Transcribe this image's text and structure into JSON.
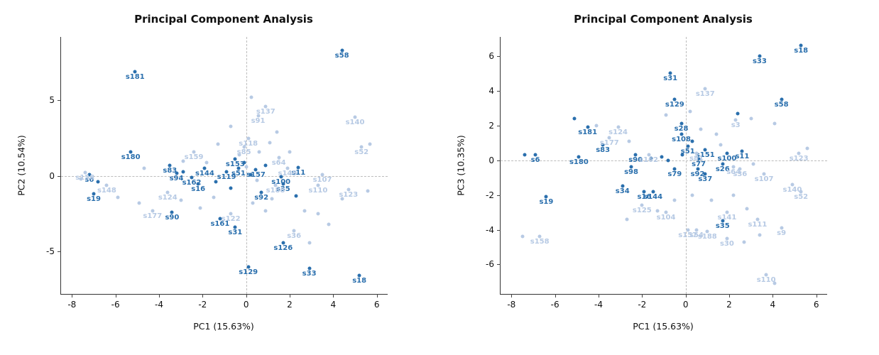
{
  "page": {
    "background": "#ffffff"
  },
  "chart_data": [
    {
      "type": "scatter",
      "title": "Principal Component Analysis",
      "xlabel": "PC1 (15.63%)",
      "ylabel": "PC2 (10.54%)",
      "xlim": [
        -8.5,
        6.5
      ],
      "ylim": [
        -7.8,
        9.2
      ],
      "xticks": [
        -8,
        -6,
        -4,
        -2,
        0,
        2,
        4,
        6
      ],
      "yticks": [
        -5,
        0,
        5
      ],
      "zero_lines": true,
      "grid": "dashed-zero-lines-only",
      "legend": "none",
      "series": [
        {
          "name": "group-dark-blue",
          "color": "#2a6fad",
          "points": [
            {
              "x": 4.4,
              "y": 8.3,
              "l": "s58"
            },
            {
              "x": -5.1,
              "y": 6.9,
              "l": "s181"
            },
            {
              "x": -5.3,
              "y": 1.6,
              "l": "s180"
            },
            {
              "x": -3.5,
              "y": 0.7,
              "l": "s83"
            },
            {
              "x": -3.2,
              "y": 0.2,
              "l": "s94"
            },
            {
              "x": -7.2,
              "y": 0.1,
              "l": "s6"
            },
            {
              "x": -7.0,
              "y": -1.2,
              "l": "s19"
            },
            {
              "x": -3.4,
              "y": -2.4,
              "l": "s90"
            },
            {
              "x": -1.9,
              "y": 0.5,
              "l": "s144"
            },
            {
              "x": -2.5,
              "y": -0.1,
              "l": "s162"
            },
            {
              "x": -2.2,
              "y": -0.5,
              "l": "s16"
            },
            {
              "x": -0.5,
              "y": 1.1,
              "l": "s153"
            },
            {
              "x": -0.9,
              "y": 0.3,
              "l": "s119"
            },
            {
              "x": -0.35,
              "y": 0.5,
              "l": "s51"
            },
            {
              "x": 0.45,
              "y": 0.4,
              "l": "s157"
            },
            {
              "x": 0.7,
              "y": -1.1,
              "l": "s92"
            },
            {
              "x": 1.7,
              "y": -0.5,
              "l": "s35"
            },
            {
              "x": 1.6,
              "y": -0.05,
              "l": "s100"
            },
            {
              "x": 2.4,
              "y": 0.55,
              "l": "s11"
            },
            {
              "x": -1.2,
              "y": -2.8,
              "l": "s161"
            },
            {
              "x": -0.5,
              "y": -3.4,
              "l": "s31"
            },
            {
              "x": 0.1,
              "y": -6.0,
              "l": "s129"
            },
            {
              "x": 1.7,
              "y": -4.4,
              "l": "s126"
            },
            {
              "x": 2.9,
              "y": -6.1,
              "l": "s33"
            },
            {
              "x": 5.2,
              "y": -6.6,
              "l": "s18"
            },
            {
              "x": -6.8,
              "y": -0.4
            },
            {
              "x": -2.9,
              "y": 0.3
            },
            {
              "x": -0.1,
              "y": 0.9
            },
            {
              "x": -0.7,
              "y": -0.8
            },
            {
              "x": 0.2,
              "y": 0.1
            },
            {
              "x": -1.4,
              "y": -0.4
            },
            {
              "x": 0.9,
              "y": 0.7
            },
            {
              "x": 2.3,
              "y": -1.3
            }
          ]
        },
        {
          "name": "group-light-blue",
          "color": "#b7cae4",
          "points": [
            {
              "x": 0.9,
              "y": 4.6,
              "l": "s137"
            },
            {
              "x": 0.55,
              "y": 4.0,
              "l": "s91"
            },
            {
              "x": 5.0,
              "y": 3.9,
              "l": "s140"
            },
            {
              "x": 5.3,
              "y": 1.9,
              "l": "s52"
            },
            {
              "x": 0.1,
              "y": 2.5,
              "l": "s118"
            },
            {
              "x": -0.1,
              "y": 1.9,
              "l": "s85"
            },
            {
              "x": -2.4,
              "y": 1.6,
              "l": "s159"
            },
            {
              "x": 1.5,
              "y": 1.2,
              "l": "s64"
            },
            {
              "x": 1.9,
              "y": 0.5,
              "l": "s149"
            },
            {
              "x": -6.4,
              "y": -0.6,
              "l": "s148"
            },
            {
              "x": -7.4,
              "y": 0.25,
              "l": "s158"
            },
            {
              "x": -3.6,
              "y": -1.1,
              "l": "s124"
            },
            {
              "x": -4.3,
              "y": -2.3,
              "l": "s177"
            },
            {
              "x": -0.7,
              "y": -2.5,
              "l": "s122"
            },
            {
              "x": 2.2,
              "y": -3.6,
              "l": "s36"
            },
            {
              "x": 1.35,
              "y": -0.6,
              "l": "s188"
            },
            {
              "x": 3.5,
              "y": 0.1,
              "l": "s107"
            },
            {
              "x": 3.3,
              "y": -0.6,
              "l": "s110"
            },
            {
              "x": 4.7,
              "y": -0.9,
              "l": "s123"
            },
            {
              "x": 0.25,
              "y": 5.2
            },
            {
              "x": -0.7,
              "y": 3.3
            },
            {
              "x": 1.4,
              "y": 2.9
            },
            {
              "x": 5.7,
              "y": 2.1
            },
            {
              "x": -1.3,
              "y": 2.1
            },
            {
              "x": -2.9,
              "y": 1.0
            },
            {
              "x": -4.7,
              "y": 0.5
            },
            {
              "x": -7.6,
              "y": -0.2
            },
            {
              "x": -5.9,
              "y": -1.4
            },
            {
              "x": -4.9,
              "y": -1.8
            },
            {
              "x": -3.0,
              "y": -1.6
            },
            {
              "x": -2.1,
              "y": -2.1
            },
            {
              "x": -1.5,
              "y": -1.4
            },
            {
              "x": 0.3,
              "y": -1.8
            },
            {
              "x": 0.9,
              "y": -2.3
            },
            {
              "x": 1.2,
              "y": -1.5
            },
            {
              "x": 2.7,
              "y": -2.3
            },
            {
              "x": 3.3,
              "y": -2.5
            },
            {
              "x": 2.9,
              "y": -4.4
            },
            {
              "x": 3.8,
              "y": -3.2
            },
            {
              "x": 4.4,
              "y": -1.5
            },
            {
              "x": 5.6,
              "y": -1.0
            },
            {
              "x": 0.6,
              "y": 1.6
            },
            {
              "x": 1.1,
              "y": 2.2
            },
            {
              "x": 0.0,
              "y": 0.6
            },
            {
              "x": 0.5,
              "y": -0.3
            },
            {
              "x": -0.3,
              "y": 1.4
            },
            {
              "x": -1.8,
              "y": 0.9
            },
            {
              "x": 2.0,
              "y": 1.6
            }
          ]
        }
      ]
    },
    {
      "type": "scatter",
      "title": "Principal Component Analysis",
      "xlabel": "PC1 (15.63%)",
      "ylabel": "PC3 (10.35%)",
      "xlim": [
        -8.5,
        6.5
      ],
      "ylim": [
        -7.7,
        7.1
      ],
      "xticks": [
        -8,
        -6,
        -4,
        -2,
        0,
        2,
        4,
        6
      ],
      "yticks": [
        -6,
        -4,
        -2,
        0,
        2,
        4,
        6
      ],
      "zero_lines": true,
      "grid": "dashed-zero-lines-only",
      "legend": "none",
      "series": [
        {
          "name": "group-dark-blue",
          "color": "#2a6fad",
          "points": [
            {
              "x": 5.3,
              "y": 6.6,
              "l": "s18"
            },
            {
              "x": 3.4,
              "y": 6.0,
              "l": "s33"
            },
            {
              "x": -0.7,
              "y": 5.0,
              "l": "s31"
            },
            {
              "x": -0.5,
              "y": 3.5,
              "l": "s129"
            },
            {
              "x": 4.4,
              "y": 3.5,
              "l": "s58"
            },
            {
              "x": -4.5,
              "y": 1.9,
              "l": "s181"
            },
            {
              "x": -3.8,
              "y": 0.9,
              "l": "s83"
            },
            {
              "x": -0.2,
              "y": 2.1,
              "l": "s28"
            },
            {
              "x": -4.9,
              "y": 0.2,
              "l": "s180"
            },
            {
              "x": -6.9,
              "y": 0.3,
              "l": "s6"
            },
            {
              "x": -6.4,
              "y": -2.1,
              "l": "s19"
            },
            {
              "x": -2.3,
              "y": 0.3,
              "l": "s90"
            },
            {
              "x": -2.5,
              "y": -0.4,
              "l": "s98"
            },
            {
              "x": -2.9,
              "y": -1.5,
              "l": "s34"
            },
            {
              "x": -1.9,
              "y": -1.8,
              "l": "s16"
            },
            {
              "x": -1.5,
              "y": -1.8,
              "l": "s144"
            },
            {
              "x": 0.9,
              "y": 0.6,
              "l": "s151"
            },
            {
              "x": 1.9,
              "y": 0.4,
              "l": "s100"
            },
            {
              "x": 2.6,
              "y": 0.5,
              "l": "s11"
            },
            {
              "x": 0.6,
              "y": 0.05,
              "l": "s77"
            },
            {
              "x": 1.7,
              "y": -0.2,
              "l": "s26"
            },
            {
              "x": -0.5,
              "y": -0.5,
              "l": "s79"
            },
            {
              "x": 0.9,
              "y": -0.8,
              "l": "s37"
            },
            {
              "x": 0.55,
              "y": -0.5,
              "l": "s92"
            },
            {
              "x": 1.7,
              "y": -3.5,
              "l": "s35"
            },
            {
              "x": -0.2,
              "y": 1.5,
              "l": "s108"
            },
            {
              "x": 0.1,
              "y": 0.8,
              "l": "s51"
            },
            {
              "x": -5.1,
              "y": 2.4
            },
            {
              "x": -7.4,
              "y": 0.3
            },
            {
              "x": -1.1,
              "y": 0.2
            },
            {
              "x": -0.8,
              "y": 0.0
            },
            {
              "x": 0.3,
              "y": 1.1
            },
            {
              "x": 2.4,
              "y": 2.7
            },
            {
              "x": -0.15,
              "y": 0.3
            },
            {
              "x": -1.6,
              "y": 0.1
            }
          ]
        },
        {
          "name": "group-light-blue",
          "color": "#b7cae4",
          "points": [
            {
              "x": 0.9,
              "y": 4.1,
              "l": "s137"
            },
            {
              "x": -3.1,
              "y": 1.9,
              "l": "s124"
            },
            {
              "x": -3.5,
              "y": 1.3,
              "l": "s177"
            },
            {
              "x": 2.3,
              "y": 2.3,
              "l": "s3"
            },
            {
              "x": 5.2,
              "y": 0.4,
              "l": "s123"
            },
            {
              "x": 2.2,
              "y": -0.4,
              "l": "s64"
            },
            {
              "x": 2.5,
              "y": -0.5,
              "l": "s36"
            },
            {
              "x": 3.6,
              "y": -0.8,
              "l": "s107"
            },
            {
              "x": 4.9,
              "y": -1.4,
              "l": "s140"
            },
            {
              "x": 5.3,
              "y": -1.8,
              "l": "s52"
            },
            {
              "x": -1.7,
              "y": 0.3,
              "l": "s162"
            },
            {
              "x": -2.0,
              "y": -2.6,
              "l": "s125"
            },
            {
              "x": -0.9,
              "y": -3.0,
              "l": "s104"
            },
            {
              "x": 1.9,
              "y": -3.0,
              "l": "s141"
            },
            {
              "x": 3.3,
              "y": -3.4,
              "l": "s111"
            },
            {
              "x": 4.4,
              "y": -3.9,
              "l": "s9"
            },
            {
              "x": 1.9,
              "y": -4.5,
              "l": "s30"
            },
            {
              "x": 0.1,
              "y": -4.0,
              "l": "s157"
            },
            {
              "x": 0.5,
              "y": -4.0,
              "l": "s54"
            },
            {
              "x": 1.0,
              "y": -4.1,
              "l": "s188"
            },
            {
              "x": -6.7,
              "y": -4.4,
              "l": "s158"
            },
            {
              "x": 3.7,
              "y": -6.6,
              "l": "s110"
            },
            {
              "x": 0.5,
              "y": 0.4,
              "l": "s81"
            },
            {
              "x": -4.1,
              "y": 2.0
            },
            {
              "x": -2.6,
              "y": 1.1
            },
            {
              "x": 3.0,
              "y": 2.4
            },
            {
              "x": 4.1,
              "y": 2.1
            },
            {
              "x": 5.6,
              "y": 0.7
            },
            {
              "x": 3.1,
              "y": -0.2
            },
            {
              "x": 2.8,
              "y": -2.8
            },
            {
              "x": 0.3,
              "y": -2.0
            },
            {
              "x": -0.5,
              "y": -2.3
            },
            {
              "x": -1.3,
              "y": -2.9
            },
            {
              "x": -2.7,
              "y": -3.4
            },
            {
              "x": 1.2,
              "y": -2.3
            },
            {
              "x": 2.2,
              "y": -2.0
            },
            {
              "x": 3.4,
              "y": -4.3
            },
            {
              "x": 2.7,
              "y": -4.7
            },
            {
              "x": 4.1,
              "y": -7.1
            },
            {
              "x": -7.5,
              "y": -4.4
            },
            {
              "x": 1.4,
              "y": 1.5
            },
            {
              "x": 0.7,
              "y": 1.8
            },
            {
              "x": -0.9,
              "y": 2.6
            },
            {
              "x": 0.2,
              "y": 2.8
            },
            {
              "x": 1.6,
              "y": 0.9
            }
          ]
        }
      ]
    }
  ]
}
